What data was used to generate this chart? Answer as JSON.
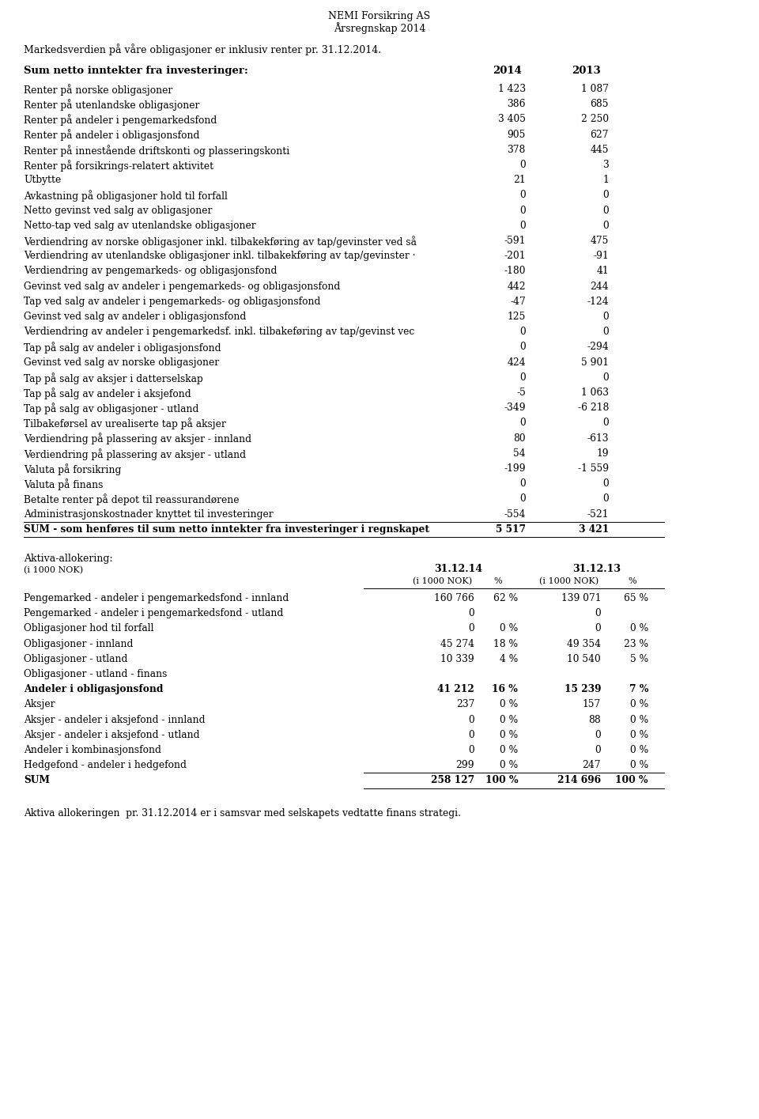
{
  "header_title1": "NEMI Forsikring AS",
  "header_title2": "Årsregnskap 2014",
  "intro_text": "Markedsverdien på våre obligasjoner er inklusiv renter pr. 31.12.2014.",
  "section1_header": "Sum netto inntekter fra investeringer:",
  "col_2014": "2014",
  "col_2013": "2013",
  "rows": [
    {
      "label": "Renter på norske obligasjoner",
      "v2014": "1 423",
      "v2013": "1 087",
      "bold": false
    },
    {
      "label": "Renter på utenlandske obligasjoner",
      "v2014": "386",
      "v2013": "685",
      "bold": false
    },
    {
      "label": "Renter på andeler i pengemarkedsfond",
      "v2014": "3 405",
      "v2013": "2 250",
      "bold": false
    },
    {
      "label": "Renter på andeler i obligasjonsfond",
      "v2014": "905",
      "v2013": "627",
      "bold": false
    },
    {
      "label": "Renter på innestående driftskonti og plasseringskonti",
      "v2014": "378",
      "v2013": "445",
      "bold": false
    },
    {
      "label": "Renter på forsikrings-relatert aktivitet",
      "v2014": "0",
      "v2013": "3",
      "bold": false
    },
    {
      "label": "Utbytte",
      "v2014": "21",
      "v2013": "1",
      "bold": false
    },
    {
      "label": "Avkastning på obligasjoner hold til forfall",
      "v2014": "0",
      "v2013": "0",
      "bold": false
    },
    {
      "label": "Netto gevinst ved salg av obligasjoner",
      "v2014": "0",
      "v2013": "0",
      "bold": false
    },
    {
      "label": "Netto-tap ved salg av utenlandske obligasjoner",
      "v2014": "0",
      "v2013": "0",
      "bold": false
    },
    {
      "label": "Verdiendring av norske obligasjoner inkl. tilbakekføring av tap/gevinster ved så",
      "v2014": "-591",
      "v2013": "475",
      "bold": false
    },
    {
      "label": "Verdiendring av utenlandske obligasjoner inkl. tilbakekføring av tap/gevinster ·",
      "v2014": "-201",
      "v2013": "-91",
      "bold": false
    },
    {
      "label": "Verdiendring av pengemarkeds- og obligasjonsfond",
      "v2014": "-180",
      "v2013": "41",
      "bold": false
    },
    {
      "label": "Gevinst ved salg av andeler i pengemarkeds- og obligasjonsfond",
      "v2014": "442",
      "v2013": "244",
      "bold": false
    },
    {
      "label": "Tap ved salg av andeler i pengemarkeds- og obligasjonsfond",
      "v2014": "-47",
      "v2013": "-124",
      "bold": false
    },
    {
      "label": "Gevinst ved salg av andeler i obligasjonsfond",
      "v2014": "125",
      "v2013": "0",
      "bold": false
    },
    {
      "label": "Verdiendring av andeler i pengemarkedsf. inkl. tilbakeføring av tap/gevinst vec",
      "v2014": "0",
      "v2013": "0",
      "bold": false
    },
    {
      "label": "Tap på salg av andeler i obligasjonsfond",
      "v2014": "0",
      "v2013": "-294",
      "bold": false
    },
    {
      "label": "Gevinst ved salg av norske obligasjoner",
      "v2014": "424",
      "v2013": "5 901",
      "bold": false
    },
    {
      "label": "Tap på salg av aksjer i datterselskap",
      "v2014": "0",
      "v2013": "0",
      "bold": false
    },
    {
      "label": "Tap på salg av andeler i aksjefond",
      "v2014": "-5",
      "v2013": "1 063",
      "bold": false
    },
    {
      "label": "Tap på salg av obligasjoner - utland",
      "v2014": "-349",
      "v2013": "-6 218",
      "bold": false
    },
    {
      "label": "Tilbakeførsel av urealiserte tap på aksjer",
      "v2014": "0",
      "v2013": "0",
      "bold": false
    },
    {
      "label": "Verdiendring på plassering av aksjer - innland",
      "v2014": "80",
      "v2013": "-613",
      "bold": false
    },
    {
      "label": "Verdiendring på plassering av aksjer - utland",
      "v2014": "54",
      "v2013": "19",
      "bold": false
    },
    {
      "label": "Valuta på forsikring",
      "v2014": "-199",
      "v2013": "-1 559",
      "bold": false
    },
    {
      "label": "Valuta på finans",
      "v2014": "0",
      "v2013": "0",
      "bold": false
    },
    {
      "label": "Betalte renter på depot til reassurandørene",
      "v2014": "0",
      "v2013": "0",
      "bold": false
    },
    {
      "label": "Administrasjonskostnader knyttet til investeringer",
      "v2014": "-554",
      "v2013": "-521",
      "bold": false
    },
    {
      "label": "SUM - som henføres til sum netto inntekter fra investeringer i regnskapet",
      "v2014": "5 517",
      "v2013": "3 421",
      "bold": true,
      "top_line": true,
      "bottom_line": true
    }
  ],
  "aktiva_title": "Aktiva-allokering:",
  "aktiva_subtitle": "(i 1000 NOK)",
  "aktiva_col1": "31.12.14",
  "aktiva_col2": "31.12.13",
  "aktiva_subcol1": "(i 1000 NOK)",
  "aktiva_subcol2": "%",
  "aktiva_subcol3": "(i 1000 NOK)",
  "aktiva_subcol4": "%",
  "aktiva_rows": [
    {
      "label": "Pengemarked - andeler i pengemarkedsfond - innland",
      "nok14": "160 766",
      "pct14": "62 %",
      "nok13": "139 071",
      "pct13": "65 %",
      "bold": false
    },
    {
      "label": "Pengemarked - andeler i pengemarkedsfond - utland",
      "nok14": "0",
      "pct14": "",
      "nok13": "0",
      "pct13": "",
      "bold": false
    },
    {
      "label": "Obligasjoner hod til forfall",
      "nok14": "0",
      "pct14": "0 %",
      "nok13": "0",
      "pct13": "0 %",
      "bold": false
    },
    {
      "label": "Obligasjoner - innland",
      "nok14": "45 274",
      "pct14": "18 %",
      "nok13": "49 354",
      "pct13": "23 %",
      "bold": false
    },
    {
      "label": "Obligasjoner - utland",
      "nok14": "10 339",
      "pct14": "4 %",
      "nok13": "10 540",
      "pct13": "5 %",
      "bold": false
    },
    {
      "label": "Obligasjoner - utland - finans",
      "nok14": "",
      "pct14": "",
      "nok13": "",
      "pct13": "",
      "bold": false
    },
    {
      "label": "Andeler i obligasjonsfond",
      "nok14": "41 212",
      "pct14": "16 %",
      "nok13": "15 239",
      "pct13": "7 %",
      "bold": true
    },
    {
      "label": "Aksjer",
      "nok14": "237",
      "pct14": "0 %",
      "nok13": "157",
      "pct13": "0 %",
      "bold": false
    },
    {
      "label": "Aksjer - andeler i aksjefond - innland",
      "nok14": "0",
      "pct14": "0 %",
      "nok13": "88",
      "pct13": "0 %",
      "bold": false
    },
    {
      "label": "Aksjer - andeler i aksjefond - utland",
      "nok14": "0",
      "pct14": "0 %",
      "nok13": "0",
      "pct13": "0 %",
      "bold": false
    },
    {
      "label": "Andeler i kombinasjonsfond",
      "nok14": "0",
      "pct14": "0 %",
      "nok13": "0",
      "pct13": "0 %",
      "bold": false
    },
    {
      "label": "Hedgefond - andeler i hedgefond",
      "nok14": "299",
      "pct14": "0 %",
      "nok13": "247",
      "pct13": "0 %",
      "bold": false
    },
    {
      "label": "SUM",
      "nok14": "258 127",
      "pct14": "100 %",
      "nok13": "214 696",
      "pct13": "100 %",
      "bold": true,
      "top_line": true,
      "bottom_line": true
    }
  ],
  "footer_text": "Aktiva allokeringen  pr. 31.12.2014 er i samsvar med selskapets vedtatte finans strategi."
}
